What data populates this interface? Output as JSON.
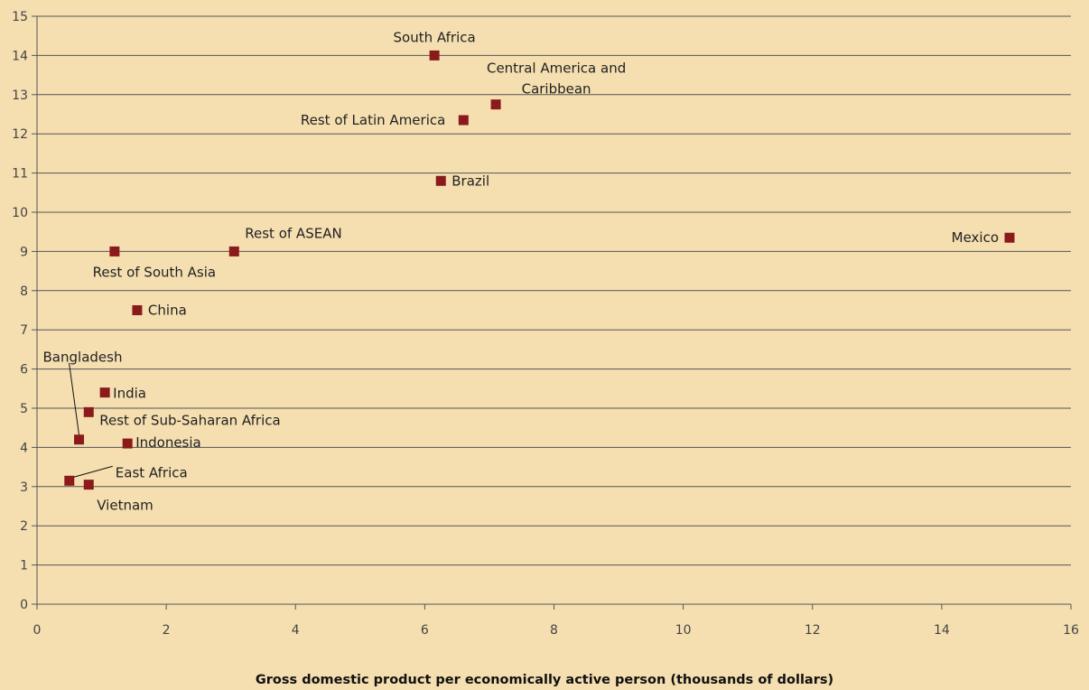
{
  "chart_data": {
    "type": "scatter",
    "title": "",
    "xlabel": "Gross domestic product per economically active person (thousands of dollars)",
    "ylabel": "",
    "xlim": [
      0,
      16
    ],
    "ylim": [
      0,
      15
    ],
    "x_ticks": [
      0,
      2,
      4,
      6,
      8,
      10,
      12,
      14,
      16
    ],
    "y_ticks": [
      0,
      1,
      2,
      3,
      4,
      5,
      6,
      7,
      8,
      9,
      10,
      11,
      12,
      13,
      14,
      15
    ],
    "grid": "horizontal",
    "legend": "none",
    "colors": {
      "background": "#f5dfb0",
      "marker": "#8b1a1a",
      "gridline": "#555555",
      "text": "#222222"
    },
    "points": [
      {
        "label": "South Africa",
        "x": 6.15,
        "y": 14.0
      },
      {
        "label": "Central America and Caribbean",
        "x": 7.1,
        "y": 12.75
      },
      {
        "label": "Rest of Latin America",
        "x": 6.6,
        "y": 12.35
      },
      {
        "label": "Brazil",
        "x": 6.25,
        "y": 10.8
      },
      {
        "label": "Rest of ASEAN",
        "x": 3.05,
        "y": 9.0
      },
      {
        "label": "Rest of South Asia",
        "x": 1.2,
        "y": 9.0
      },
      {
        "label": "Mexico",
        "x": 15.05,
        "y": 9.35
      },
      {
        "label": "China",
        "x": 1.55,
        "y": 7.5
      },
      {
        "label": "India",
        "x": 1.05,
        "y": 5.4
      },
      {
        "label": "Rest of Sub-Saharan Africa",
        "x": 0.8,
        "y": 4.9
      },
      {
        "label": "Bangladesh",
        "x": 0.65,
        "y": 4.2
      },
      {
        "label": "Indonesia",
        "x": 1.4,
        "y": 4.1
      },
      {
        "label": "East Africa",
        "x": 0.5,
        "y": 3.15
      },
      {
        "label": "Vietnam",
        "x": 0.8,
        "y": 3.05
      }
    ]
  }
}
